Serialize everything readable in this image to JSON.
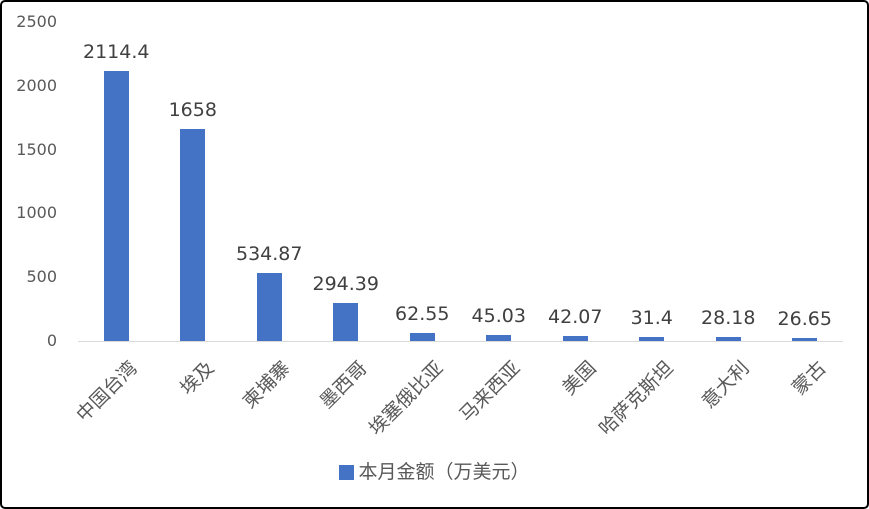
{
  "chart_data": {
    "type": "bar",
    "title": "",
    "xlabel": "",
    "ylabel": "",
    "categories": [
      "中国台湾",
      "埃及",
      "柬埔寨",
      "墨西哥",
      "埃塞俄比亚",
      "马来西亚",
      "美国",
      "哈萨克斯坦",
      "意大利",
      "蒙古"
    ],
    "values": [
      2114.4,
      1658,
      534.87,
      294.39,
      62.55,
      45.03,
      42.07,
      31.4,
      28.18,
      26.65
    ],
    "value_labels": [
      "2114.4",
      "1658",
      "534.87",
      "294.39",
      "62.55",
      "45.03",
      "42.07",
      "31.4",
      "28.18",
      "26.65"
    ],
    "legend_label": "本月金额（万美元）",
    "legend_position": "bottom",
    "ylim": [
      0,
      2500
    ],
    "yticks": [
      0,
      500,
      1000,
      1500,
      2000,
      2500
    ],
    "ytick_labels": [
      "0",
      "500",
      "1000",
      "1500",
      "2000",
      "2500"
    ],
    "grid": false,
    "bar_color": "#4472C4"
  },
  "colors": {
    "bar": "#4472C4",
    "axis_label": "#595959",
    "data_label": "#404040",
    "axis_line": "#D9D9D9",
    "background": "#FFFFFF",
    "border": "#000000"
  }
}
